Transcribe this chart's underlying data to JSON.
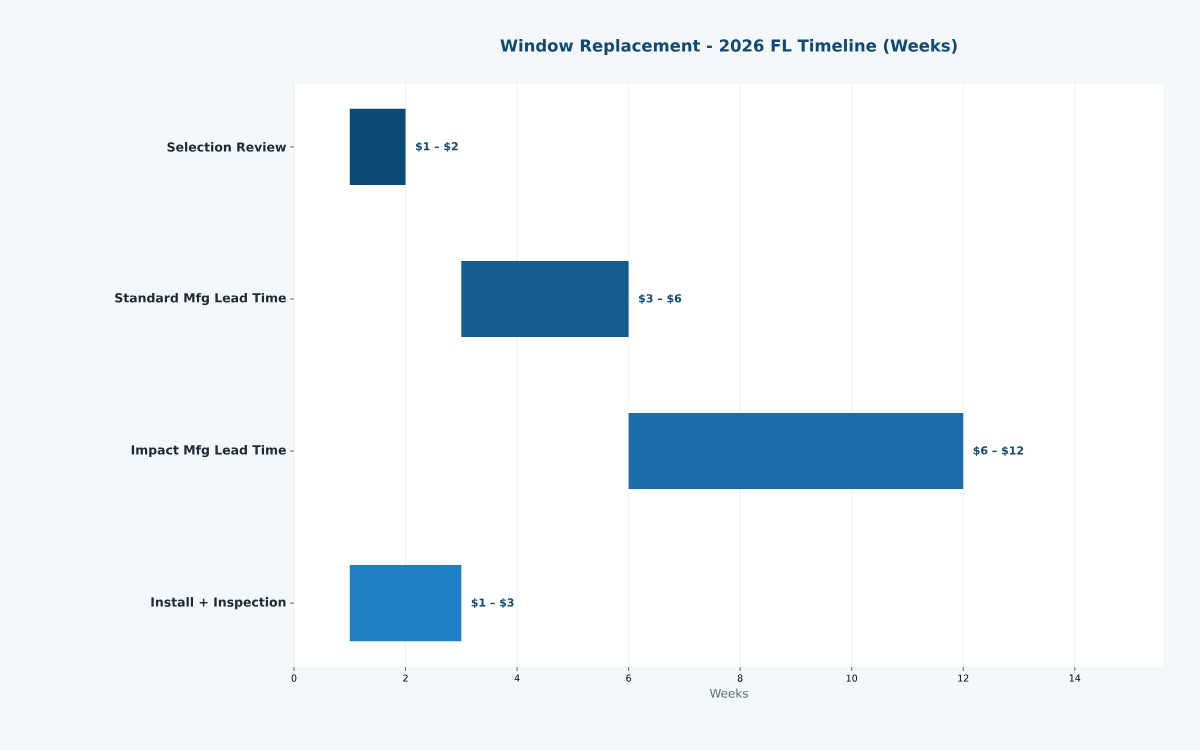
{
  "chart_data": {
    "type": "bar",
    "orientation": "horizontal",
    "title": "Window Replacement - 2026 FL Timeline (Weeks)",
    "xlabel": "Weeks",
    "categories": [
      "Selection Review",
      "Standard Mfg Lead Time",
      "Impact Mfg Lead Time",
      "Install + Inspection"
    ],
    "base": [
      1,
      3,
      6,
      1
    ],
    "values": [
      1,
      3,
      6,
      2
    ],
    "colors": [
      "#0f4a75",
      "#155c91",
      "#1b6ca8",
      "#1e7fc2"
    ],
    "annotations": [
      "$1 – $2",
      "$3 – $6",
      "$6 – $12",
      "$1 – $3"
    ],
    "xlim": [
      0,
      15.6
    ],
    "xticks": [
      0,
      2,
      4,
      6,
      8,
      10,
      12,
      14
    ],
    "grid": "x"
  }
}
